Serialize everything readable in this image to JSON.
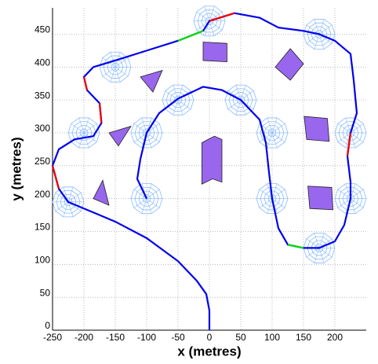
{
  "chart_data": {
    "type": "path-map",
    "x_label": "x (metres)",
    "y_label": "y (metres)",
    "xlim": [
      -250,
      250
    ],
    "ylim": [
      0,
      490
    ],
    "xticks": [
      -250,
      -200,
      -150,
      -100,
      -50,
      0,
      50,
      100,
      150,
      200
    ],
    "yticks": [
      0,
      50,
      100,
      150,
      200,
      250,
      300,
      350,
      400,
      450
    ],
    "grid": true,
    "series": [
      {
        "color": "#0000ee",
        "x": [
          0,
          0,
          -5,
          -20,
          -50,
          -100,
          -150,
          -200,
          -225,
          -240,
          -250,
          -240,
          -215,
          -185,
          -172,
          -175,
          -195,
          -200,
          -185,
          -150,
          -100,
          -50,
          -10,
          0,
          40,
          80,
          110,
          150,
          175,
          200,
          225,
          230,
          235,
          225,
          220,
          225,
          225,
          215,
          200,
          175,
          150,
          125,
          110,
          100,
          95,
          90,
          80,
          50,
          20,
          -10,
          -50,
          -80,
          -100,
          -110,
          -115,
          -100
        ],
        "y": [
          0,
          30,
          55,
          75,
          105,
          140,
          165,
          185,
          195,
          215,
          250,
          275,
          290,
          295,
          315,
          345,
          365,
          385,
          400,
          410,
          425,
          440,
          455,
          470,
          482,
          475,
          460,
          455,
          450,
          440,
          420,
          380,
          330,
          300,
          265,
          225,
          200,
          160,
          135,
          125,
          125,
          130,
          155,
          200,
          240,
          285,
          320,
          350,
          365,
          370,
          352,
          330,
          300,
          260,
          230,
          200
        ]
      },
      {
        "color": "#ee0000",
        "x": [
          -240,
          -250
        ],
        "y": [
          215,
          250
        ]
      },
      {
        "color": "#ee0000",
        "x": [
          -172,
          -175
        ],
        "y": [
          315,
          345
        ]
      },
      {
        "color": "#ee0000",
        "x": [
          -195,
          -200
        ],
        "y": [
          365,
          385
        ]
      },
      {
        "color": "#ee0000",
        "x": [
          0,
          40
        ],
        "y": [
          470,
          482
        ]
      },
      {
        "color": "#ee0000",
        "x": [
          225,
          220
        ],
        "y": [
          300,
          265
        ]
      },
      {
        "color": "#00dd00",
        "x": [
          -50,
          -10
        ],
        "y": [
          440,
          455
        ]
      },
      {
        "color": "#00dd00",
        "x": [
          150,
          125
        ],
        "y": [
          125,
          130
        ]
      }
    ],
    "sensors": {
      "color": "#88bbff",
      "x": [
        -225,
        -200,
        -150,
        -100,
        -100,
        -50,
        0,
        50,
        100,
        100,
        175,
        175,
        225,
        225
      ],
      "y": [
        195,
        300,
        400,
        200,
        300,
        350,
        470,
        350,
        300,
        200,
        450,
        125,
        300,
        200
      ]
    },
    "obstacles": {
      "color": "#9966ee",
      "x": [
        [
          -10,
          28,
          28,
          -10
        ],
        [
          129,
          150,
          129,
          105
        ],
        [
          -110,
          -75,
          -90
        ],
        [
          -160,
          -125,
          -145
        ],
        [
          -185,
          -170,
          -160
        ],
        [
          -12,
          8,
          20,
          20,
          5,
          -12
        ],
        [
          151,
          188,
          191,
          155
        ],
        [
          157,
          195,
          197,
          160
        ]
      ],
      "y": [
        [
          438,
          436,
          408,
          410
        ],
        [
          428,
          405,
          380,
          400
        ],
        [
          385,
          395,
          362
        ],
        [
          300,
          310,
          280
        ],
        [
          200,
          228,
          190
        ],
        [
          285,
          295,
          290,
          225,
          230,
          222
        ],
        [
          325,
          322,
          287,
          290
        ],
        [
          219,
          217,
          183,
          185
        ]
      ]
    }
  }
}
